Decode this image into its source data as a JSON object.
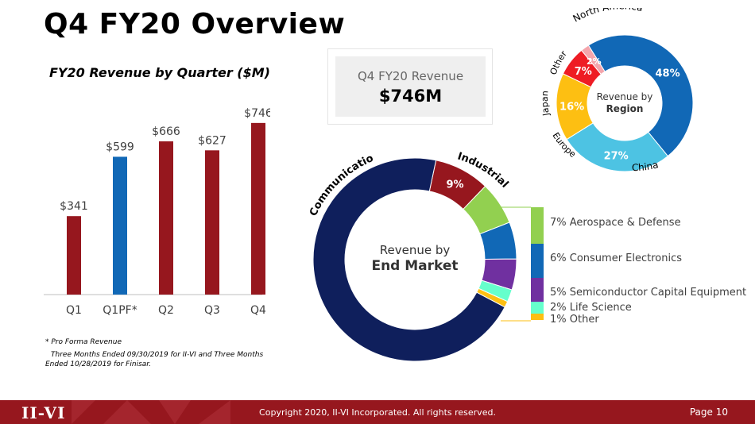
{
  "slide": {
    "title": "Q4 FY20 Overview",
    "page": "Page 10",
    "copyright": "Copyright 2020, II-VI Incorporated. All rights reserved.",
    "logo_text": "II-VI"
  },
  "revenue_box": {
    "label": "Q4 FY20 Revenue",
    "value": "$746M"
  },
  "footnote": {
    "line1": "* Pro Forma Revenue",
    "line2": "Three Months Ended  09/30/2019 for II-VI and Three Months",
    "line3": "Ended 10/28/2019 for Finisar."
  },
  "colors": {
    "dark_red": "#96171e",
    "blue": "#1168b6",
    "navy": "#0f1f5c"
  },
  "chart_data": [
    {
      "type": "bar",
      "title": "FY20 Revenue by Quarter ($M)",
      "categories": [
        "Q1",
        "Q1PF*",
        "Q2",
        "Q3",
        "Q4"
      ],
      "values": [
        341,
        599,
        666,
        627,
        746
      ],
      "labels": [
        "$341",
        "$599",
        "$666",
        "$627",
        "$746"
      ],
      "colors": [
        "#96171e",
        "#1168b6",
        "#96171e",
        "#96171e",
        "#96171e"
      ],
      "ylim": [
        0,
        800
      ]
    },
    {
      "type": "pie",
      "center_label": [
        "Revenue by",
        "Region"
      ],
      "slices": [
        {
          "name": "North America",
          "value": 48,
          "label": "48%",
          "color": "#1168b6"
        },
        {
          "name": "China",
          "value": 27,
          "label": "27%",
          "color": "#4dc3e3"
        },
        {
          "name": "Europe",
          "value": 16,
          "label": "16%",
          "color": "#fdbf12"
        },
        {
          "name": "Japan",
          "value": 7,
          "label": "7%",
          "color": "#ee1c24"
        },
        {
          "name": "Other",
          "value": 2,
          "label": "2%",
          "color": "#f4a5ac"
        }
      ]
    },
    {
      "type": "pie",
      "center_label": [
        "Revenue by",
        "End Market"
      ],
      "slices": [
        {
          "name": "Industrial",
          "value": 9,
          "label": "9%",
          "color": "#96171e"
        },
        {
          "name": "Aerospace & Defense",
          "value": 7,
          "label": "7% Aerospace & Defense",
          "color": "#92d050"
        },
        {
          "name": "Consumer Electronics",
          "value": 6,
          "label": "6% Consumer Electronics",
          "color": "#1168b6"
        },
        {
          "name": "Semiconductor Capital Equipment",
          "value": 5,
          "label": "5% Semiconductor Capital Equipment",
          "color": "#7030a0"
        },
        {
          "name": "Life Science",
          "value": 2,
          "label": "2% Life Science",
          "color": "#66ffcc"
        },
        {
          "name": "Other",
          "value": 1,
          "label": "1% Other",
          "color": "#fdbf12"
        },
        {
          "name": "Communications",
          "value": 72,
          "label": "72%",
          "color": "#0f1f5c"
        }
      ]
    }
  ]
}
